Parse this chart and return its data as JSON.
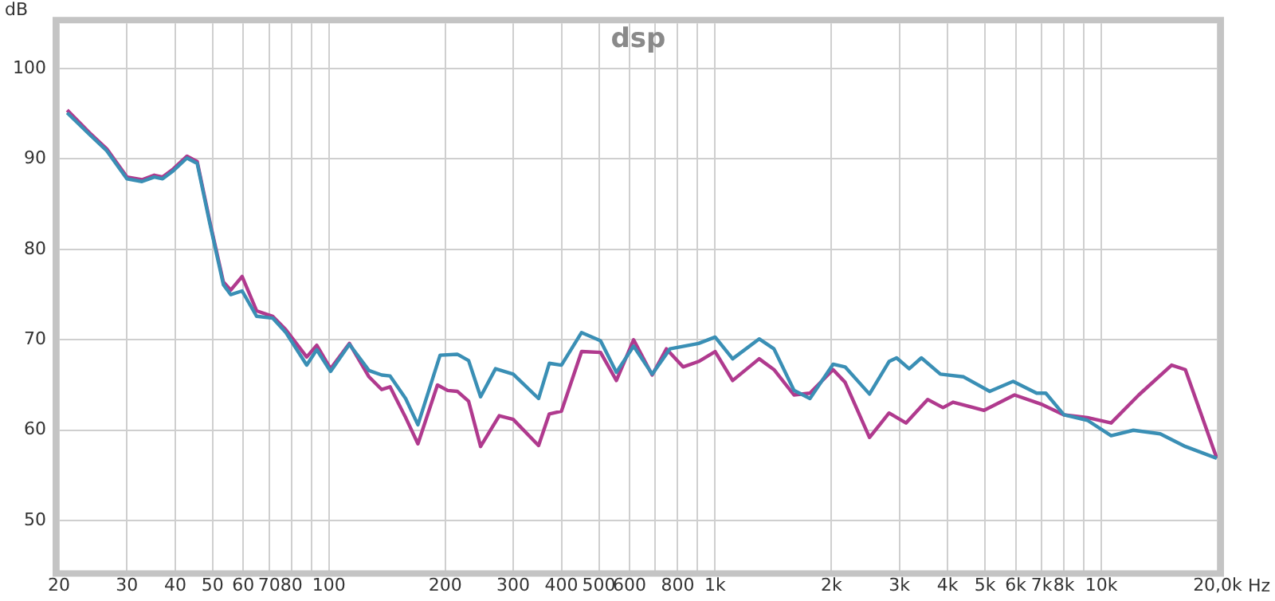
{
  "chart_data": {
    "type": "line",
    "title": "dsp",
    "xlabel": "Hz",
    "ylabel": "dB",
    "log": "x",
    "grid": true,
    "legend": false,
    "marker": "none",
    "line_style": "solid",
    "xlim": [
      20,
      20000
    ],
    "ylim": [
      44.5,
      105
    ],
    "xticks": [
      20,
      30,
      40,
      50,
      60,
      70,
      80,
      {
        "value": 90,
        "label": null
      },
      100,
      200,
      300,
      400,
      500,
      600,
      {
        "value": 700,
        "label": null
      },
      {
        "value": 800,
        "label": "800"
      },
      {
        "value": 900,
        "label": null
      },
      {
        "value": 1000,
        "label": "1k"
      },
      {
        "value": 2000,
        "label": "2k"
      },
      {
        "value": 3000,
        "label": "3k"
      },
      {
        "value": 4000,
        "label": "4k"
      },
      {
        "value": 5000,
        "label": "5k"
      },
      {
        "value": 6000,
        "label": "6k"
      },
      {
        "value": 7000,
        "label": "7k"
      },
      {
        "value": 8000,
        "label": "8k"
      },
      {
        "value": 9000,
        "label": null
      },
      {
        "value": 10000,
        "label": "10k"
      },
      {
        "value": 20000,
        "label": "20,0k"
      }
    ],
    "yticks": [
      50,
      60,
      70,
      80,
      90,
      100
    ],
    "series": [
      {
        "color": "#3a8fb5",
        "x": [
          21,
          24,
          26.6,
          30,
          32.8,
          35.3,
          37.1,
          39.3,
          42.9,
          45.6,
          49.2,
          53.3,
          55.7,
          59.6,
          65,
          71.5,
          77.4,
          87.6,
          93,
          101,
          113,
          127,
          137,
          144,
          158,
          170,
          194,
          215,
          230,
          247,
          270,
          300,
          349,
          372,
          400,
          451,
          505,
          555,
          615,
          687,
          764,
          906,
          1000,
          1110,
          1300,
          1420,
          1600,
          1760,
          2020,
          2170,
          2510,
          2820,
          2950,
          3180,
          3420,
          3830,
          4400,
          5140,
          5910,
          6800,
          7180,
          8000,
          9200,
          10600,
          12100,
          14200,
          16500,
          19900
        ],
        "values": [
          95.1,
          92.7,
          90.9,
          87.8,
          87.5,
          88,
          87.8,
          88.6,
          90.1,
          89.5,
          82.8,
          76.1,
          75,
          75.4,
          72.6,
          72.4,
          70.8,
          67.2,
          68.9,
          66.5,
          69.5,
          66.6,
          66.1,
          66,
          63.5,
          60.6,
          68.3,
          68.4,
          67.7,
          63.7,
          66.8,
          66.2,
          63.5,
          67.4,
          67.2,
          70.8,
          69.9,
          66.4,
          69.3,
          66.2,
          69,
          69.6,
          70.3,
          67.9,
          70.1,
          69,
          64.4,
          63.5,
          67.3,
          67,
          64,
          67.6,
          68,
          66.8,
          68,
          66.2,
          65.9,
          64.3,
          65.4,
          64.1,
          64.1,
          61.7,
          61.1,
          59.4,
          60,
          59.6,
          58.2,
          56.9
        ]
      },
      {
        "color": "#b03a8e",
        "x": [
          21,
          24,
          26.6,
          30,
          32.8,
          35.3,
          37.1,
          39.3,
          42.9,
          45.6,
          49.2,
          53.3,
          55.7,
          59.6,
          65,
          71.5,
          77.4,
          87.6,
          93,
          101,
          113,
          127,
          137,
          144,
          158,
          170,
          191,
          203,
          215,
          230,
          247,
          276,
          300,
          349,
          372,
          400,
          451,
          505,
          555,
          615,
          687,
          748,
          826,
          906,
          1000,
          1110,
          1300,
          1420,
          1600,
          1760,
          2020,
          2170,
          2510,
          2820,
          3120,
          3550,
          3890,
          4130,
          4970,
          5960,
          6970,
          8000,
          9200,
          10600,
          12500,
          15200,
          16500,
          19900
        ],
        "values": [
          95.4,
          92.9,
          91.1,
          88,
          87.7,
          88.2,
          88,
          88.8,
          90.3,
          89.7,
          83,
          76.4,
          75.5,
          77,
          73.2,
          72.6,
          71.1,
          68.1,
          69.4,
          66.8,
          69.6,
          65.9,
          64.5,
          64.8,
          61.4,
          58.5,
          65,
          64.4,
          64.3,
          63.2,
          58.2,
          61.6,
          61.2,
          58.3,
          61.8,
          62.1,
          68.7,
          68.6,
          65.5,
          70,
          66.1,
          69,
          67,
          67.6,
          68.7,
          65.5,
          67.9,
          66.7,
          63.9,
          64.1,
          66.7,
          65.3,
          59.2,
          61.9,
          60.8,
          63.4,
          62.5,
          63.1,
          62.2,
          63.9,
          62.9,
          61.7,
          61.4,
          60.8,
          63.9,
          67.2,
          66.7,
          56.9
        ]
      }
    ]
  }
}
